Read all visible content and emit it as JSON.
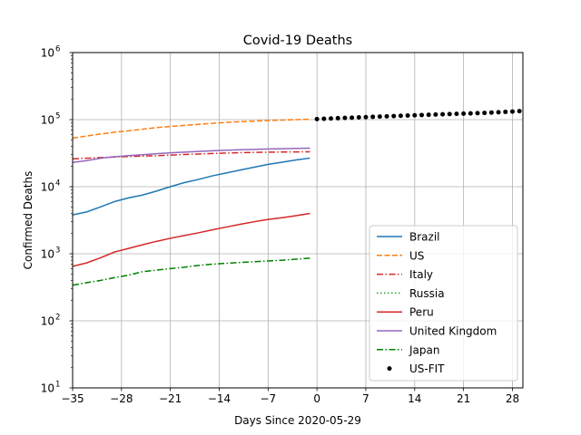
{
  "chart_data": {
    "type": "line",
    "title": "Covid-19 Deaths",
    "xlabel": "Days Since 2020-05-29",
    "ylabel": "Confirmed Deaths",
    "y_scale": "log",
    "xlim": [
      -35,
      29.5
    ],
    "ylim": [
      10,
      1000000
    ],
    "x_ticks": [
      -35,
      -28,
      -21,
      -14,
      -7,
      0,
      7,
      14,
      21,
      28
    ],
    "x_tick_labels": [
      "−35",
      "−28",
      "−21",
      "−14",
      "−7",
      "0",
      "7",
      "14",
      "21",
      "28"
    ],
    "y_ticks": [
      10,
      100,
      1000,
      10000,
      100000,
      1000000
    ],
    "y_tick_base": "10",
    "y_tick_exponents": [
      "1",
      "2",
      "3",
      "4",
      "5",
      "6"
    ],
    "grid": true,
    "legend_position": "bottom-right",
    "series": [
      {
        "name": "Brazil",
        "color": "#1f77b4",
        "style": "solid",
        "x": [
          -35,
          -33,
          -31,
          -29,
          -27,
          -25,
          -23,
          -21,
          -19,
          -17,
          -15,
          -13,
          -11,
          -9,
          -7,
          -5,
          -3,
          -1
        ],
        "y": [
          3800,
          4200,
          5000,
          6000,
          6800,
          7500,
          8600,
          10000,
          11500,
          12800,
          14500,
          16000,
          17700,
          19500,
          21500,
          23200,
          25000,
          26700
        ]
      },
      {
        "name": "US",
        "color": "#ff7f0e",
        "style": "dashed",
        "x": [
          -35,
          -33,
          -31,
          -29,
          -27,
          -25,
          -23,
          -21,
          -19,
          -17,
          -15,
          -13,
          -11,
          -9,
          -7,
          -5,
          -3,
          -1
        ],
        "y": [
          53000,
          57000,
          61000,
          65000,
          68000,
          72000,
          76000,
          79000,
          82000,
          85000,
          88000,
          91000,
          93000,
          95000,
          97000,
          98500,
          100000,
          101500
        ]
      },
      {
        "name": "Italy",
        "color": "#d62728",
        "style": "dashdot",
        "x": [
          -35,
          -31,
          -27,
          -23,
          -19,
          -15,
          -11,
          -7,
          -3,
          -1
        ],
        "y": [
          26000,
          27200,
          28200,
          29000,
          30200,
          31200,
          32200,
          32700,
          33000,
          33200
        ]
      },
      {
        "name": "Russia",
        "color": "#2ca02c",
        "style": "dotted",
        "x": [],
        "y": []
      },
      {
        "name": "Peru",
        "color": "#d62728",
        "style": "solid",
        "x": [
          -35,
          -33,
          -31,
          -29,
          -27,
          -25,
          -23,
          -21,
          -19,
          -17,
          -15,
          -13,
          -11,
          -9,
          -7,
          -5,
          -3,
          -1
        ],
        "y": [
          650,
          730,
          870,
          1060,
          1200,
          1360,
          1530,
          1700,
          1870,
          2050,
          2270,
          2500,
          2750,
          3000,
          3250,
          3450,
          3700,
          4000
        ]
      },
      {
        "name": "United Kingdom",
        "color": "#9467bd",
        "style": "solid",
        "x": [
          -35,
          -33,
          -31,
          -29,
          -27,
          -25,
          -23,
          -21,
          -19,
          -17,
          -15,
          -13,
          -11,
          -9,
          -7,
          -5,
          -3,
          -1
        ],
        "y": [
          23000,
          24500,
          26500,
          28000,
          29000,
          30000,
          31000,
          32000,
          32800,
          33500,
          34300,
          35000,
          35500,
          36000,
          36500,
          36800,
          37200,
          37500
        ]
      },
      {
        "name": "Japan",
        "color": "#008000",
        "style": "dashdot",
        "x": [
          -35,
          -33,
          -31,
          -29,
          -27,
          -25,
          -23,
          -21,
          -19,
          -17,
          -15,
          -13,
          -11,
          -9,
          -7,
          -5,
          -3,
          -1
        ],
        "y": [
          340,
          370,
          400,
          440,
          480,
          540,
          570,
          600,
          630,
          670,
          700,
          720,
          740,
          760,
          780,
          800,
          830,
          860
        ]
      },
      {
        "name": "US-FIT",
        "color": "#000000",
        "style": "points",
        "x": [
          0,
          1,
          2,
          3,
          4,
          5,
          6,
          7,
          8,
          9,
          10,
          11,
          12,
          13,
          14,
          15,
          16,
          17,
          18,
          19,
          20,
          21,
          22,
          23,
          24,
          25,
          26,
          27,
          28,
          29
        ],
        "y": [
          102000,
          103000,
          104000,
          105000,
          106000,
          107000,
          108000,
          109000,
          110000,
          111000,
          112000,
          113000,
          114000,
          115000,
          116000,
          117000,
          118000,
          119000,
          120000,
          121000,
          122000,
          123000,
          124000,
          125000,
          126000,
          127500,
          129000,
          130500,
          132000,
          134000
        ]
      }
    ]
  }
}
